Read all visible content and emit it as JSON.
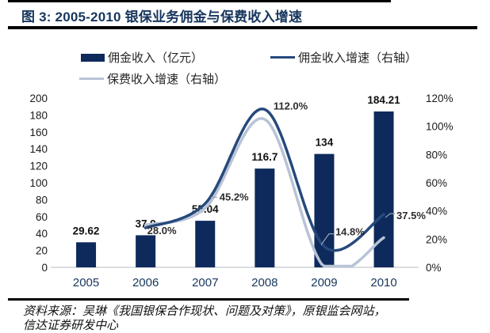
{
  "title": {
    "text": "图 3: 2005-2010 银保业务佣金与保费收入增速"
  },
  "legend": [
    {
      "label": "佣金收入（亿元）",
      "swatch": "bar",
      "color": "#0e2a5c"
    },
    {
      "label": "佣金收入增速（右轴）",
      "swatch": "line",
      "color": "#26497c"
    },
    {
      "label": "保费收入增速（右轴）",
      "swatch": "line",
      "color": "#b8c3d6"
    }
  ],
  "chart_data": {
    "type": "bar+line",
    "categories": [
      "2005",
      "2006",
      "2007",
      "2008",
      "2009",
      "2010"
    ],
    "bar_series": {
      "name": "佣金收入（亿元）",
      "axis": "left",
      "color": "#0e2a5c",
      "values": [
        29.62,
        37.9,
        55.04,
        116.7,
        134,
        184.21
      ],
      "labels": [
        "29.62",
        "37.9",
        "55.04",
        "116.7",
        "134",
        "184.21"
      ]
    },
    "line_series": [
      {
        "name": "佣金收入增速（右轴）",
        "axis": "right",
        "color": "#26497c",
        "smooth": true,
        "values": [
          null,
          28.0,
          45.2,
          112.0,
          14.8,
          37.5
        ]
      },
      {
        "name": "保费收入增速（右轴）",
        "axis": "right",
        "color": "#b8c3d6",
        "smooth": true,
        "estimated_from_pixels": true,
        "values": [
          null,
          30,
          42,
          105,
          0,
          21
        ]
      }
    ],
    "left_axis": {
      "min": 0,
      "max": 200,
      "step": 20,
      "ticks": [
        "0",
        "20",
        "40",
        "60",
        "80",
        "100",
        "120",
        "140",
        "160",
        "180",
        "200"
      ]
    },
    "right_axis": {
      "min": 0,
      "max": 120,
      "step": 20,
      "ticks": [
        "0%",
        "20%",
        "40%",
        "60%",
        "80%",
        "100%",
        "120%"
      ]
    },
    "grid": false,
    "legend_position": "top",
    "annotations": [
      {
        "text": "28.0%",
        "year": "2006",
        "value": 28.0
      },
      {
        "text": "45.2%",
        "year": "2007",
        "value": 45.2
      },
      {
        "text": "112.0%",
        "year": "2008",
        "value": 112.0
      },
      {
        "text": "14.8%",
        "year": "2009",
        "value": 14.8
      },
      {
        "text": "37.5%",
        "year": "2010",
        "value": 37.5
      }
    ]
  },
  "source": {
    "line1": "资料来源：吴琳《我国银保合作现状、问题及对策》，原银监会网站，",
    "line2": "信达证券研发中心"
  }
}
